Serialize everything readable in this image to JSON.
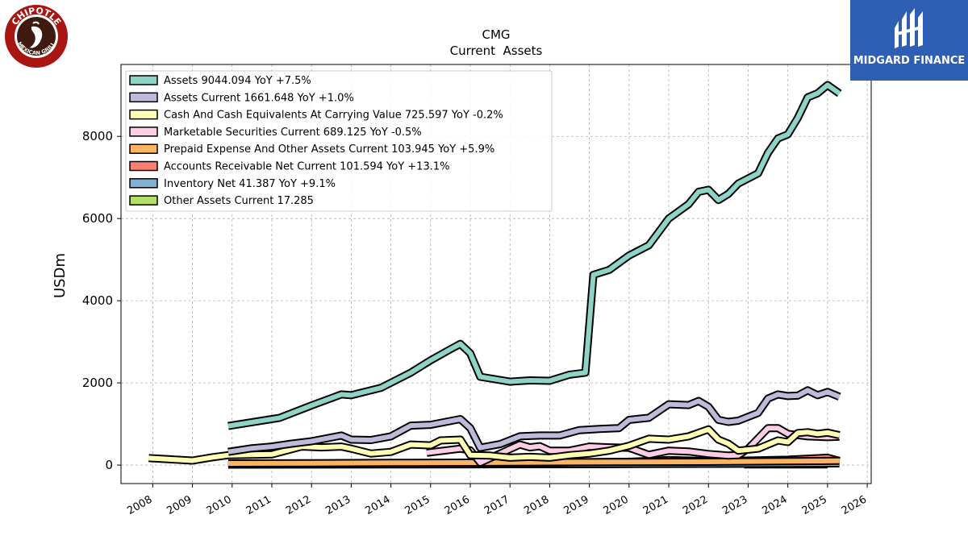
{
  "logos": {
    "left_text_top": "CHIPOTLE",
    "left_text_bottom": "MEXICAN GRILL",
    "right_text": "MIDGARD FINANCE"
  },
  "chart_data": {
    "type": "line",
    "title": "CMG",
    "subtitle": "Current  Assets",
    "xlabel": "",
    "ylabel": "USDm",
    "xlim": [
      2007.2,
      2026.1
    ],
    "ylim": [
      -450,
      9750
    ],
    "grid": true,
    "legend_position": "top-left",
    "x_ticks": [
      "2008",
      "2009",
      "2010",
      "2011",
      "2012",
      "2013",
      "2014",
      "2015",
      "2016",
      "2017",
      "2018",
      "2019",
      "2020",
      "2021",
      "2022",
      "2023",
      "2024",
      "2025",
      "2026"
    ],
    "y_ticks": [
      "0",
      "2000",
      "4000",
      "6000",
      "8000"
    ],
    "y_tick_values": [
      0,
      2000,
      4000,
      6000,
      8000
    ],
    "series": [
      {
        "name": "Assets  9044.094 YoY +7.5%",
        "color": "#8dd3c7",
        "points": [
          [
            2009.9,
            950
          ],
          [
            2011.2,
            1150
          ],
          [
            2012.0,
            1450
          ],
          [
            2012.75,
            1720
          ],
          [
            2013.0,
            1700
          ],
          [
            2013.75,
            1880
          ],
          [
            2014.5,
            2250
          ],
          [
            2015.0,
            2550
          ],
          [
            2015.5,
            2820
          ],
          [
            2015.75,
            2950
          ],
          [
            2016.0,
            2720
          ],
          [
            2016.25,
            2150
          ],
          [
            2017.0,
            2030
          ],
          [
            2017.5,
            2060
          ],
          [
            2018.0,
            2050
          ],
          [
            2018.5,
            2200
          ],
          [
            2018.9,
            2250
          ],
          [
            2019.1,
            4630
          ],
          [
            2019.5,
            4750
          ],
          [
            2020.0,
            5100
          ],
          [
            2020.5,
            5350
          ],
          [
            2021.0,
            6000
          ],
          [
            2021.5,
            6350
          ],
          [
            2021.75,
            6650
          ],
          [
            2022.0,
            6700
          ],
          [
            2022.25,
            6450
          ],
          [
            2022.5,
            6600
          ],
          [
            2022.75,
            6850
          ],
          [
            2023.25,
            7100
          ],
          [
            2023.5,
            7600
          ],
          [
            2023.75,
            7950
          ],
          [
            2024.0,
            8050
          ],
          [
            2024.25,
            8450
          ],
          [
            2024.5,
            8950
          ],
          [
            2024.75,
            9050
          ],
          [
            2025.0,
            9250
          ],
          [
            2025.3,
            9044
          ]
        ]
      },
      {
        "name": "Assets Current  1661.648 YoY +1.0%",
        "color": "#bebada",
        "points": [
          [
            2009.9,
            320
          ],
          [
            2010.5,
            410
          ],
          [
            2011.0,
            450
          ],
          [
            2011.5,
            520
          ],
          [
            2012.0,
            580
          ],
          [
            2012.75,
            720
          ],
          [
            2013.0,
            620
          ],
          [
            2013.5,
            610
          ],
          [
            2014.0,
            700
          ],
          [
            2014.5,
            960
          ],
          [
            2015.0,
            980
          ],
          [
            2015.75,
            1120
          ],
          [
            2016.0,
            900
          ],
          [
            2016.25,
            420
          ],
          [
            2016.75,
            510
          ],
          [
            2017.25,
            700
          ],
          [
            2017.75,
            720
          ],
          [
            2018.25,
            720
          ],
          [
            2018.75,
            850
          ],
          [
            2019.25,
            880
          ],
          [
            2019.75,
            900
          ],
          [
            2020.0,
            1100
          ],
          [
            2020.5,
            1150
          ],
          [
            2021.0,
            1480
          ],
          [
            2021.5,
            1460
          ],
          [
            2021.75,
            1560
          ],
          [
            2022.0,
            1420
          ],
          [
            2022.25,
            1100
          ],
          [
            2022.5,
            1050
          ],
          [
            2022.75,
            1080
          ],
          [
            2023.25,
            1270
          ],
          [
            2023.5,
            1620
          ],
          [
            2023.75,
            1720
          ],
          [
            2024.0,
            1680
          ],
          [
            2024.25,
            1690
          ],
          [
            2024.5,
            1820
          ],
          [
            2024.75,
            1700
          ],
          [
            2025.0,
            1780
          ],
          [
            2025.3,
            1662
          ]
        ]
      },
      {
        "name": "Cash And Cash Equivalents At Carrying Value  725.597 YoY -0.2%",
        "color": "#ffffb3",
        "points": [
          [
            2007.9,
            170
          ],
          [
            2009.0,
            110
          ],
          [
            2009.5,
            190
          ],
          [
            2009.9,
            240
          ],
          [
            2010.5,
            250
          ],
          [
            2011.0,
            260
          ],
          [
            2011.75,
            450
          ],
          [
            2012.25,
            430
          ],
          [
            2012.75,
            450
          ],
          [
            2013.0,
            400
          ],
          [
            2013.5,
            280
          ],
          [
            2014.0,
            320
          ],
          [
            2014.5,
            500
          ],
          [
            2015.0,
            480
          ],
          [
            2015.25,
            600
          ],
          [
            2015.75,
            620
          ],
          [
            2016.0,
            240
          ],
          [
            2016.5,
            230
          ],
          [
            2017.0,
            180
          ],
          [
            2017.5,
            200
          ],
          [
            2018.0,
            180
          ],
          [
            2018.5,
            240
          ],
          [
            2019.0,
            280
          ],
          [
            2019.5,
            350
          ],
          [
            2020.0,
            470
          ],
          [
            2020.5,
            640
          ],
          [
            2021.0,
            620
          ],
          [
            2021.5,
            700
          ],
          [
            2022.0,
            870
          ],
          [
            2022.25,
            620
          ],
          [
            2022.5,
            520
          ],
          [
            2022.75,
            350
          ],
          [
            2023.25,
            400
          ],
          [
            2023.75,
            600
          ],
          [
            2024.0,
            560
          ],
          [
            2024.25,
            780
          ],
          [
            2024.5,
            800
          ],
          [
            2024.75,
            760
          ],
          [
            2025.0,
            790
          ],
          [
            2025.3,
            726
          ]
        ]
      },
      {
        "name": "Marketable Securities Current  689.125 YoY -0.5%",
        "color": "#fccde5",
        "points": [
          [
            2014.9,
            300
          ],
          [
            2015.75,
            400
          ],
          [
            2016.0,
            360
          ],
          [
            2016.25,
            60
          ],
          [
            2016.75,
            280
          ],
          [
            2017.25,
            500
          ],
          [
            2017.5,
            430
          ],
          [
            2017.75,
            460
          ],
          [
            2018.0,
            350
          ],
          [
            2018.5,
            350
          ],
          [
            2018.75,
            400
          ],
          [
            2019.0,
            450
          ],
          [
            2019.5,
            430
          ],
          [
            2020.0,
            420
          ],
          [
            2020.5,
            250
          ],
          [
            2021.0,
            350
          ],
          [
            2021.5,
            330
          ],
          [
            2022.0,
            270
          ],
          [
            2022.5,
            230
          ],
          [
            2022.75,
            240
          ],
          [
            2023.0,
            400
          ],
          [
            2023.5,
            900
          ],
          [
            2023.75,
            900
          ],
          [
            2024.0,
            760
          ],
          [
            2024.5,
            700
          ],
          [
            2025.0,
            680
          ],
          [
            2025.3,
            689
          ]
        ]
      },
      {
        "name": "Prepaid Expense And Other Assets Current  103.945 YoY +5.9%",
        "color": "#fdb462",
        "points": [
          [
            2009.9,
            40
          ],
          [
            2012.0,
            45
          ],
          [
            2014.0,
            55
          ],
          [
            2016.0,
            60
          ],
          [
            2018.0,
            70
          ],
          [
            2020.0,
            75
          ],
          [
            2022.0,
            80
          ],
          [
            2024.0,
            95
          ],
          [
            2025.3,
            104
          ]
        ]
      },
      {
        "name": "Accounts Receivable Net Current  101.594 YoY +13.1%",
        "color": "#fb8072",
        "points": [
          [
            2016.0,
            30
          ],
          [
            2018.0,
            60
          ],
          [
            2020.0,
            80
          ],
          [
            2021.0,
            120
          ],
          [
            2022.0,
            100
          ],
          [
            2023.0,
            110
          ],
          [
            2024.0,
            130
          ],
          [
            2025.0,
            180
          ],
          [
            2025.3,
            102
          ]
        ]
      },
      {
        "name": "Inventory Net  41.387 YoY +9.1%",
        "color": "#80b1d3",
        "points": [
          [
            2009.9,
            10
          ],
          [
            2012.0,
            12
          ],
          [
            2014.0,
            15
          ],
          [
            2016.0,
            18
          ],
          [
            2018.0,
            20
          ],
          [
            2020.0,
            25
          ],
          [
            2022.0,
            30
          ],
          [
            2024.0,
            35
          ],
          [
            2025.3,
            41
          ]
        ]
      },
      {
        "name": "Other Assets Current  17.285",
        "color": "#b3de69",
        "points": [
          [
            2022.9,
            17
          ],
          [
            2025.0,
            17
          ]
        ]
      }
    ]
  }
}
